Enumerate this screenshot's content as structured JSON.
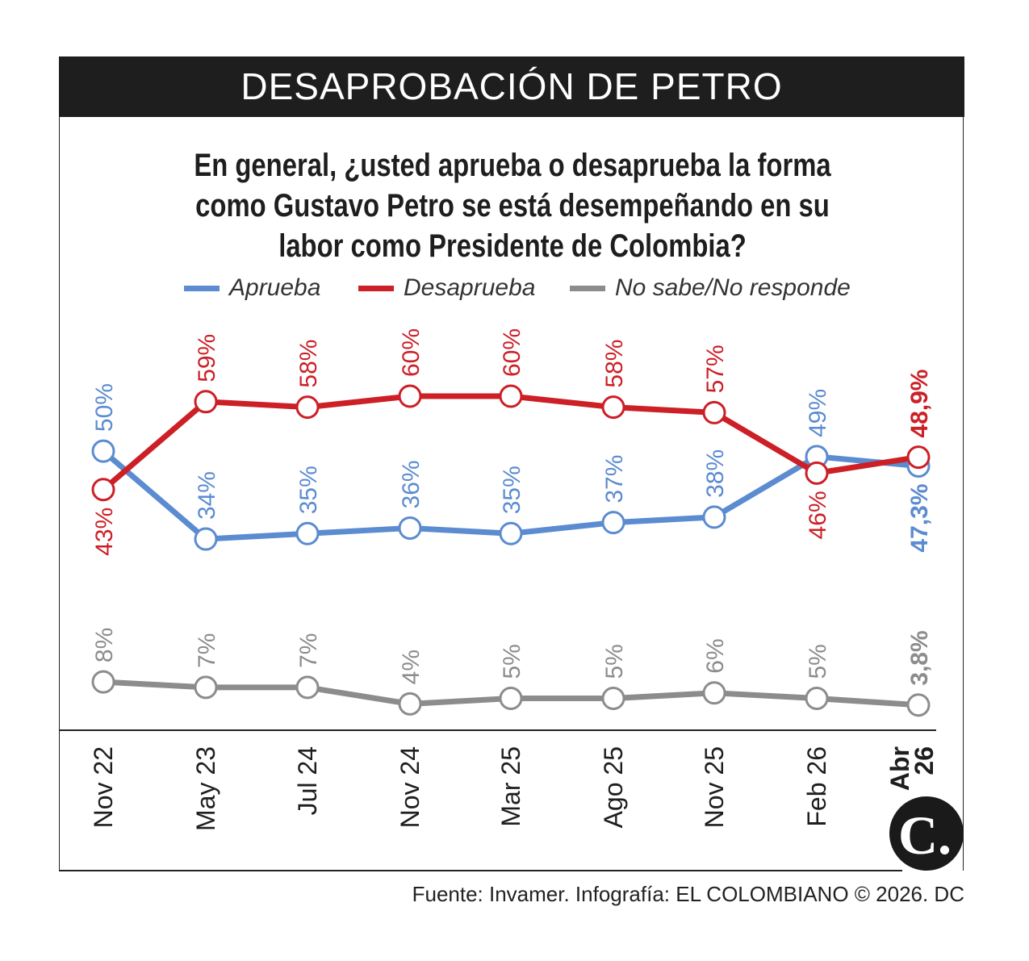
{
  "header": {
    "title": "DESAPROBACIÓN DE PETRO"
  },
  "question": "En general, ¿usted aprueba o desaprueba la forma como Gustavo Petro se está desempeñando en su labor como Presidente de Colombia?",
  "source": "Fuente: Invamer. Infografía: EL COLOMBIANO © 2026. DC",
  "logo": "C.",
  "chart_data": {
    "type": "line",
    "categories": [
      "Nov 22",
      "May 23",
      "Jul 24",
      "Nov 24",
      "Mar 25",
      "Ago 25",
      "Nov 25",
      "Feb 26",
      "Abr 26"
    ],
    "last_category_bold": true,
    "grid": false,
    "legend_position": "top",
    "series": [
      {
        "name": "Aprueba",
        "color": "#5b8bd0",
        "values": [
          50,
          34,
          35,
          36,
          35,
          37,
          38,
          49,
          47.3
        ],
        "labels": [
          "50%",
          "34%",
          "35%",
          "36%",
          "35%",
          "37%",
          "38%",
          "49%",
          "47,3%"
        ]
      },
      {
        "name": "Desaprueba",
        "color": "#cc1f26",
        "values": [
          43,
          59,
          58,
          60,
          60,
          58,
          57,
          46,
          48.9
        ],
        "labels": [
          "43%",
          "59%",
          "58%",
          "60%",
          "60%",
          "58%",
          "57%",
          "46%",
          "48,9%"
        ]
      },
      {
        "name": "No sabe/No responde",
        "color": "#8c8c8c",
        "values": [
          8,
          7,
          7,
          4,
          5,
          5,
          6,
          5,
          3.8
        ],
        "labels": [
          "8%",
          "7%",
          "7%",
          "4%",
          "5%",
          "5%",
          "6%",
          "5%",
          "3,8%"
        ]
      }
    ]
  }
}
